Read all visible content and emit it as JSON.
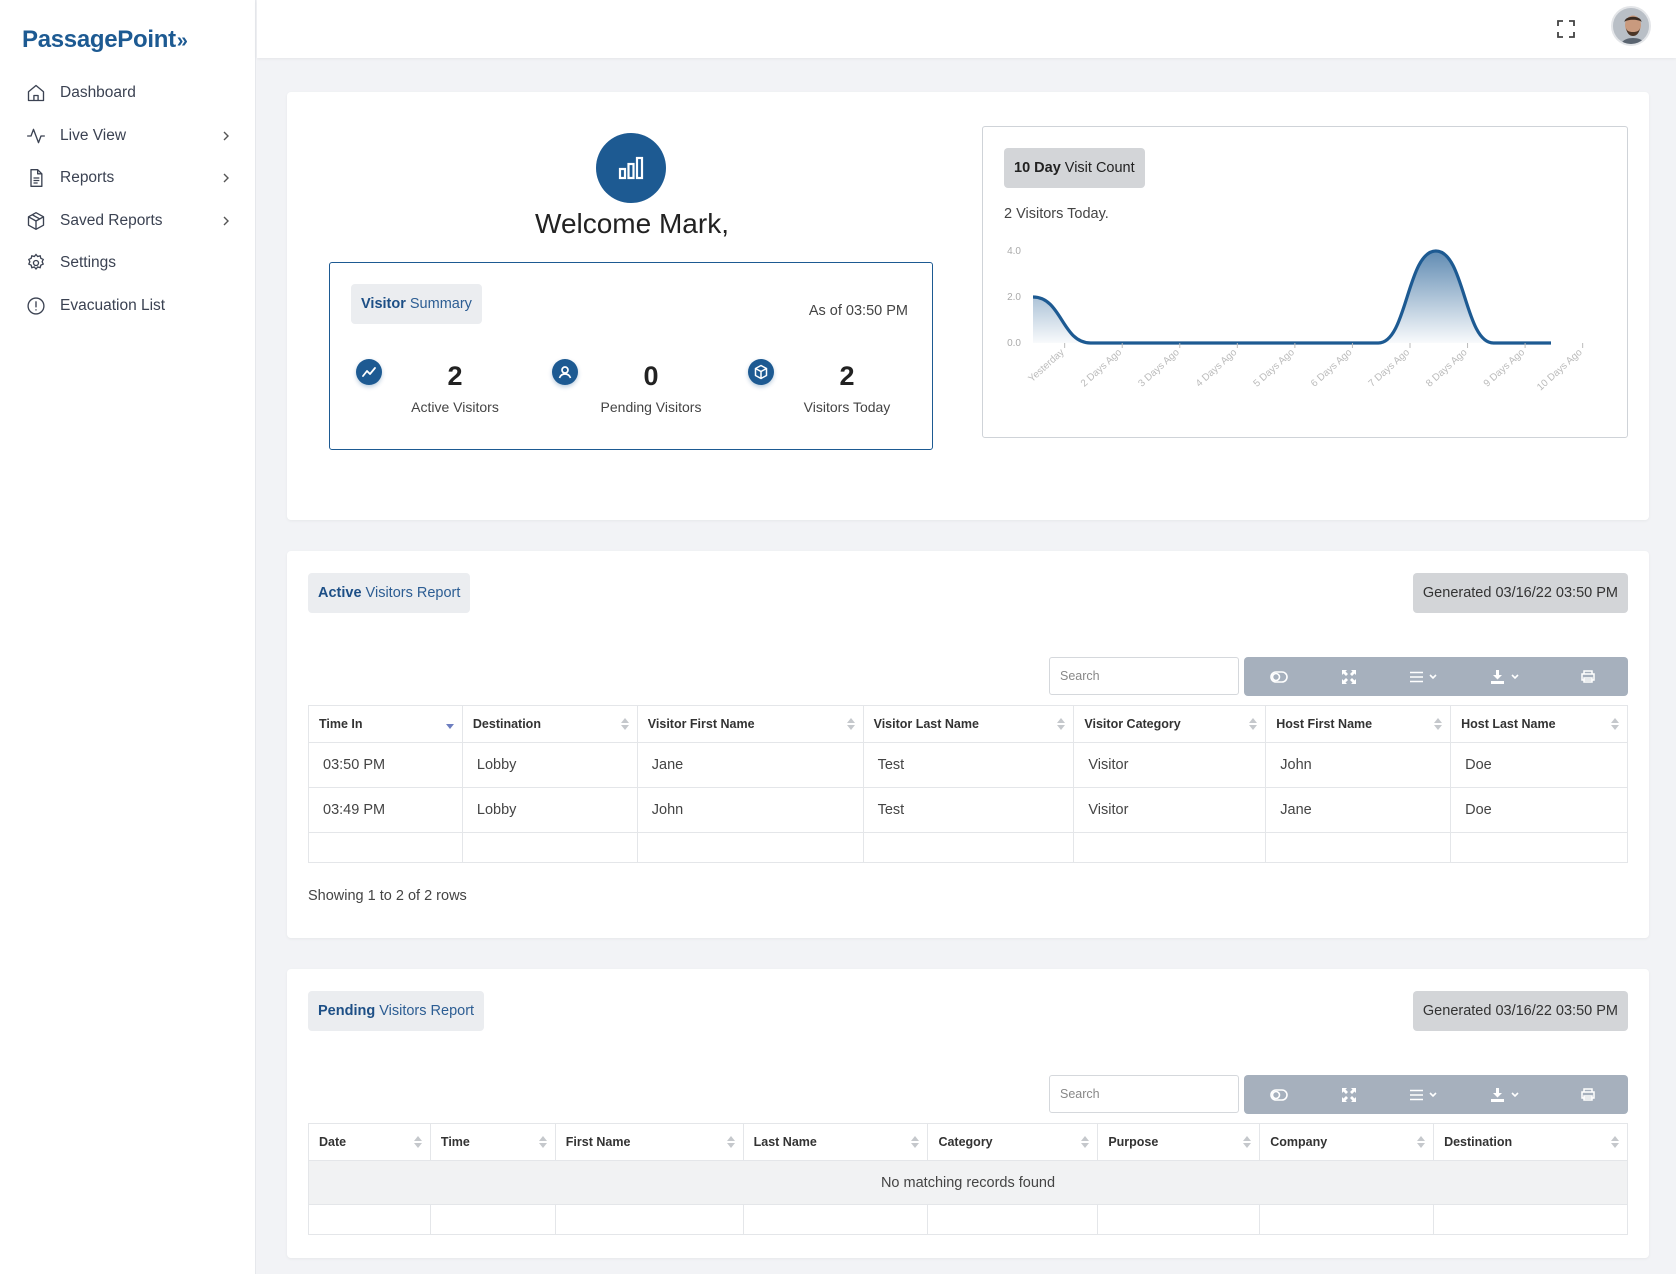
{
  "app": {
    "logo_text": "PassagePoint",
    "logo_chevrons": "»"
  },
  "sidebar": {
    "items": [
      {
        "label": "Dashboard",
        "icon": "home-icon",
        "has_chevron": false
      },
      {
        "label": "Live View",
        "icon": "activity-icon",
        "has_chevron": true
      },
      {
        "label": "Reports",
        "icon": "document-icon",
        "has_chevron": true
      },
      {
        "label": "Saved Reports",
        "icon": "box-icon",
        "has_chevron": true
      },
      {
        "label": "Settings",
        "icon": "gear-icon",
        "has_chevron": false
      },
      {
        "label": "Evacuation List",
        "icon": "alert-circle-icon",
        "has_chevron": false
      }
    ]
  },
  "welcome": {
    "greeting": "Welcome Mark,"
  },
  "summary": {
    "title_bold": "Visitor",
    "title_rest": " Summary",
    "as_of": "As of 03:50 PM",
    "stats": [
      {
        "value": "2",
        "label": "Active Visitors",
        "icon": "trend-icon"
      },
      {
        "value": "0",
        "label": "Pending Visitors",
        "icon": "user-icon"
      },
      {
        "value": "2",
        "label": "Visitors Today",
        "icon": "cube-icon"
      }
    ]
  },
  "visit_chart": {
    "title_bold": "10 Day",
    "title_rest": " Visit Count",
    "subtitle": "2 Visitors Today.",
    "accent_color": "#1d5a92"
  },
  "chart_data": {
    "type": "area",
    "categories": [
      "Yesterday",
      "2 Days Ago",
      "3 Days Ago",
      "4 Days Ago",
      "5 Days Ago",
      "6 Days Ago",
      "7 Days Ago",
      "8 Days Ago",
      "9 Days Ago",
      "10 Days Ago"
    ],
    "values": [
      2,
      0,
      0,
      0,
      0,
      0,
      0,
      4,
      0,
      0
    ],
    "y_ticks": [
      "4.0",
      "2.0",
      "0.0"
    ],
    "ylim": [
      0,
      4
    ],
    "grid": false,
    "legend": "none"
  },
  "active_report": {
    "title_bold": "Active",
    "title_rest": " Visitors Report",
    "generated": "Generated 03/16/22 03:50 PM",
    "search_placeholder": "Search",
    "columns": [
      "Time In",
      "Destination",
      "Visitor First Name",
      "Visitor Last Name",
      "Visitor Category",
      "Host First Name",
      "Host Last Name"
    ],
    "rows": [
      [
        "03:50 PM",
        "Lobby",
        "Jane",
        "Test",
        "Visitor",
        "John",
        "Doe"
      ],
      [
        "03:49 PM",
        "Lobby",
        "John",
        "Test",
        "Visitor",
        "Jane",
        "Doe"
      ]
    ],
    "footer": "Showing 1 to 2 of 2 rows"
  },
  "pending_report": {
    "title_bold": "Pending",
    "title_rest": " Visitors Report",
    "generated": "Generated 03/16/22 03:50 PM",
    "search_placeholder": "Search",
    "columns": [
      "Date",
      "Time",
      "First Name",
      "Last Name",
      "Category",
      "Purpose",
      "Company",
      "Destination"
    ],
    "empty_message": "No matching records found"
  },
  "toolbar": {
    "buttons": [
      "toggle-icon",
      "fullscreen-icon",
      "columns-icon",
      "export-icon",
      "print-icon"
    ]
  }
}
